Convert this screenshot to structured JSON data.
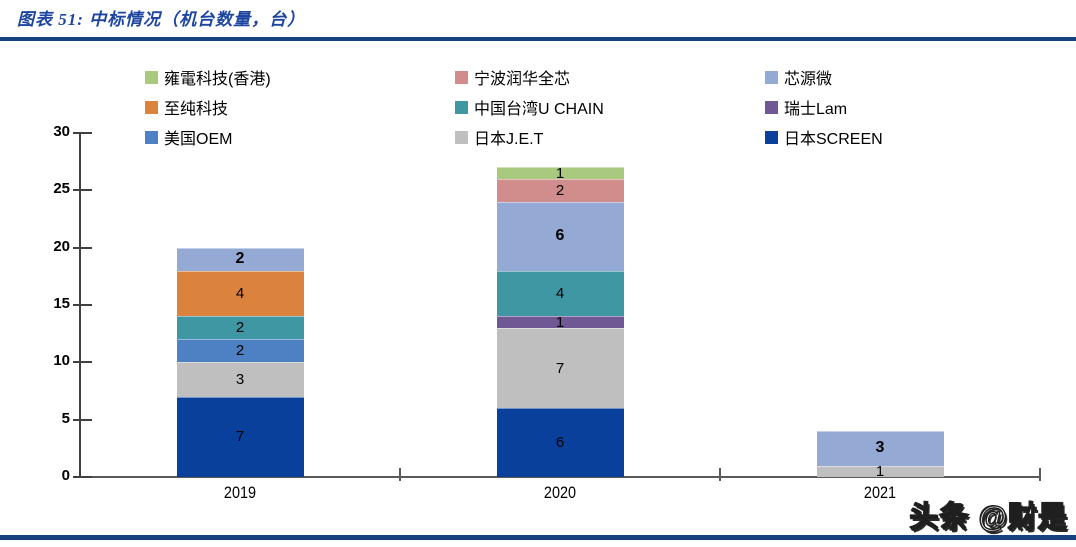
{
  "header": {
    "title": "图表 51:  中标情况（机台数量，台）"
  },
  "watermark": "头条 @财是",
  "accent_colors": {
    "header_rule": "#17407f",
    "title_text": "#1e46a0",
    "axis": "#595959"
  },
  "chart_data": {
    "type": "bar",
    "stacked": true,
    "title": "中标情况（机台数量，台）",
    "categories": [
      "2019",
      "2020",
      "2021"
    ],
    "series": [
      {
        "name": "日本SCREEN",
        "color": "#08409c",
        "values": [
          7,
          6,
          0
        ]
      },
      {
        "name": "日本J.E.T",
        "color": "#bfbfbf",
        "values": [
          3,
          7,
          1
        ]
      },
      {
        "name": "美国OEM",
        "color": "#4e81c4",
        "values": [
          2,
          0,
          0
        ]
      },
      {
        "name": "瑞士Lam",
        "color": "#6f5894",
        "values": [
          0,
          1,
          0
        ]
      },
      {
        "name": "中国台湾U CHAIN",
        "color": "#3f97a3",
        "values": [
          2,
          4,
          0
        ]
      },
      {
        "name": "至纯科技",
        "color": "#db833d",
        "values": [
          4,
          0,
          0
        ]
      },
      {
        "name": "芯源微",
        "color": "#94a9d4",
        "values": [
          2,
          6,
          3
        ],
        "label_bold": true
      },
      {
        "name": "宁波润华全芯",
        "color": "#d08d8b",
        "values": [
          0,
          2,
          0
        ]
      },
      {
        "name": "雍電科技(香港)",
        "color": "#a9c97e",
        "values": [
          0,
          1,
          0
        ]
      }
    ],
    "ylim": [
      0,
      30
    ],
    "yticks": [
      0,
      5,
      10,
      15,
      20,
      25,
      30
    ],
    "grid": false,
    "legend_position": "top",
    "value_labels": "inside-center"
  }
}
